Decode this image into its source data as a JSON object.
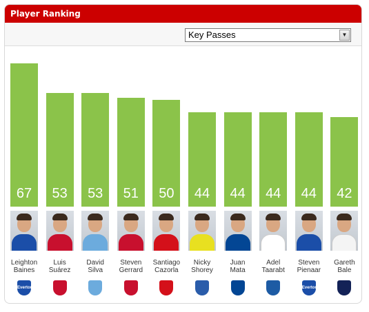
{
  "header": {
    "title": "Player Ranking"
  },
  "metric_select": {
    "value": "Key Passes"
  },
  "colors": {
    "header": "#cc0000",
    "bar": "#8bc34a"
  },
  "chart_data": {
    "type": "bar",
    "categories": [
      "Leighton Baines",
      "Luis Suárez",
      "David Silva",
      "Steven Gerrard",
      "Santiago Cazorla",
      "Nicky Shorey",
      "Juan Mata",
      "Adel Taarabt",
      "Steven Pienaar",
      "Gareth Bale"
    ],
    "values": [
      67,
      53,
      53,
      51,
      50,
      44,
      44,
      44,
      44,
      42
    ],
    "ylim": [
      0,
      67
    ]
  },
  "players": [
    {
      "first": "Leighton",
      "last": "Baines",
      "club_icon": "everton-crest-icon",
      "crest_color": "#1b4ea8",
      "kit": "#1b4ea8",
      "crest_text": "Everton"
    },
    {
      "first": "Luis",
      "last": "Suárez",
      "club_icon": "liverpool-crest-icon",
      "crest_color": "#c8102e",
      "kit": "#c8102e",
      "crest_text": ""
    },
    {
      "first": "David",
      "last": "Silva",
      "club_icon": "manchester-city-crest-icon",
      "crest_color": "#6cabdd",
      "kit": "#6cabdd",
      "crest_text": ""
    },
    {
      "first": "Steven",
      "last": "Gerrard",
      "club_icon": "liverpool-crest-icon",
      "crest_color": "#c8102e",
      "kit": "#c8102e",
      "crest_text": ""
    },
    {
      "first": "Santiago",
      "last": "Cazorla",
      "club_icon": "arsenal-crest-icon",
      "crest_color": "#d4101a",
      "kit": "#d4101a",
      "crest_text": ""
    },
    {
      "first": "Nicky",
      "last": "Shorey",
      "club_icon": "reading-crest-icon",
      "crest_color": "#2a5caa",
      "kit": "#e8e020",
      "crest_text": ""
    },
    {
      "first": "Juan",
      "last": "Mata",
      "club_icon": "chelsea-crest-icon",
      "crest_color": "#034694",
      "kit": "#034694",
      "crest_text": ""
    },
    {
      "first": "Adel",
      "last": "Taarabt",
      "club_icon": "qpr-crest-icon",
      "crest_color": "#1d5ba4",
      "kit": "#ffffff",
      "crest_text": ""
    },
    {
      "first": "Steven",
      "last": "Pienaar",
      "club_icon": "everton-crest-icon",
      "crest_color": "#1b4ea8",
      "kit": "#1b4ea8",
      "crest_text": "Everton"
    },
    {
      "first": "Gareth",
      "last": "Bale",
      "club_icon": "tottenham-crest-icon",
      "crest_color": "#132257",
      "kit": "#f4f4f4",
      "crest_text": ""
    }
  ]
}
